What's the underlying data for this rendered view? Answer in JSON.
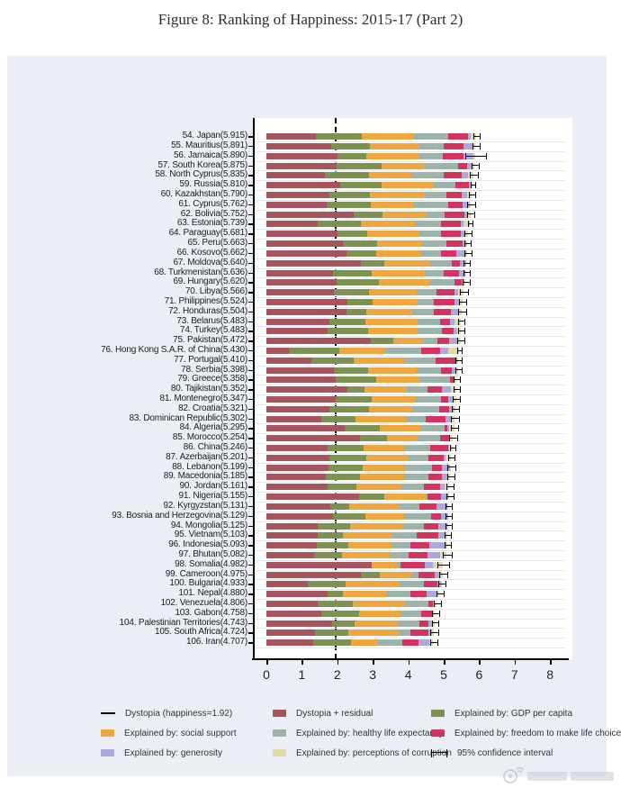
{
  "chart_data": {
    "type": "bar",
    "stacked": true,
    "orientation": "horizontal",
    "title": "Figure 8: Ranking of Happiness: 2015-17 (Part 2)",
    "xlabel": "",
    "ylabel": "",
    "xlim": [
      0,
      8.5
    ],
    "x_ticks": [
      "0",
      "1",
      "2",
      "3",
      "4",
      "5",
      "6",
      "7",
      "8"
    ],
    "grid": "horizontal-light",
    "dystopia_line_value": 1.92,
    "segments": [
      {
        "key": "dystopia_residual",
        "label": "Dystopia + residual",
        "color": "#a6545e"
      },
      {
        "key": "gdp",
        "label": "Explained by: GDP per capita",
        "color": "#7d9153"
      },
      {
        "key": "social",
        "label": "Explained by: social support",
        "color": "#efa63e"
      },
      {
        "key": "health",
        "label": "Explained by: healthy life expectancy",
        "color": "#9cb3a9"
      },
      {
        "key": "freedom",
        "label": "Explained by: freedom to make life choices",
        "color": "#d2335f"
      },
      {
        "key": "generosity",
        "label": "Explained by: generosity",
        "color": "#aca7dc"
      },
      {
        "key": "corruption",
        "label": "Explained by: perceptions of corruption",
        "color": "#e0daa8"
      }
    ],
    "rows": [
      {
        "label": "54. Japan(5.915)",
        "total": 5.915,
        "values": [
          1.389,
          1.294,
          1.462,
          0.988,
          0.553,
          0.079,
          0.15
        ],
        "ci": 0.07
      },
      {
        "label": "55. Mauritius(5.891)",
        "total": 5.891,
        "values": [
          1.838,
          1.09,
          1.387,
          0.684,
          0.558,
          0.245,
          0.089
        ],
        "ci": 0.09
      },
      {
        "label": "56. Jamaica(5.890)",
        "total": 5.89,
        "values": [
          2.004,
          0.819,
          1.493,
          0.654,
          0.58,
          0.299,
          0.041
        ],
        "ci": 0.28
      },
      {
        "label": "57. South Korea(5.875)",
        "total": 5.875,
        "values": [
          1.98,
          1.266,
          1.204,
          0.955,
          0.244,
          0.175,
          0.051
        ],
        "ci": 0.08
      },
      {
        "label": "58. North Cyprus(5.835)",
        "total": 5.835,
        "values": [
          1.658,
          1.229,
          1.211,
          0.909,
          0.495,
          0.179,
          0.154
        ],
        "ci": 0.1
      },
      {
        "label": "59. Russia(5.810)",
        "total": 5.81,
        "values": [
          2.092,
          1.151,
          1.479,
          0.599,
          0.399,
          0.065,
          0.025
        ],
        "ci": 0.06
      },
      {
        "label": "60. Kazakhstan(5.790)",
        "total": 5.79,
        "values": [
          1.777,
          1.143,
          1.516,
          0.631,
          0.454,
          0.148,
          0.121
        ],
        "ci": 0.07
      },
      {
        "label": "61. Cyprus(5.762)",
        "total": 5.762,
        "values": [
          1.706,
          1.229,
          1.191,
          0.999,
          0.406,
          0.19,
          0.041
        ],
        "ci": 0.09
      },
      {
        "label": "62. Bolivia(5.752)",
        "total": 5.752,
        "values": [
          2.46,
          0.807,
          1.254,
          0.509,
          0.559,
          0.1,
          0.063
        ],
        "ci": 0.08
      },
      {
        "label": "63. Estonia(5.739)",
        "total": 5.739,
        "values": [
          1.457,
          1.2,
          1.532,
          0.737,
          0.553,
          0.086,
          0.174
        ],
        "ci": 0.06
      },
      {
        "label": "64. Paraguay(5.681)",
        "total": 5.681,
        "values": [
          2.013,
          0.833,
          1.473,
          0.617,
          0.555,
          0.112,
          0.078
        ],
        "ci": 0.09
      },
      {
        "label": "65. Peru(5.663)",
        "total": 5.663,
        "values": [
          2.161,
          0.963,
          1.274,
          0.675,
          0.462,
          0.092,
          0.036
        ],
        "ci": 0.08
      },
      {
        "label": "66. Kosovo(5.662)",
        "total": 5.662,
        "values": [
          2.254,
          0.855,
          1.23,
          0.578,
          0.448,
          0.274,
          0.023
        ],
        "ci": 0.09
      },
      {
        "label": "67. Moldova(5.640)",
        "total": 5.64,
        "values": [
          2.659,
          0.657,
          1.301,
          0.62,
          0.232,
          0.171,
          0.0
        ],
        "ci": 0.08
      },
      {
        "label": "68. Turkmenistan(5.636)",
        "total": 5.636,
        "values": [
          1.871,
          1.092,
          1.512,
          0.514,
          0.441,
          0.178,
          0.028
        ],
        "ci": 0.08
      },
      {
        "label": "69. Hungary(5.620)",
        "total": 5.62,
        "values": [
          1.992,
          1.171,
          1.419,
          0.732,
          0.199,
          0.081,
          0.026
        ],
        "ci": 0.08
      },
      {
        "label": "70. Libya(5.566)",
        "total": 5.566,
        "values": [
          1.914,
          0.985,
          1.35,
          0.553,
          0.496,
          0.116,
          0.152
        ],
        "ci": 0.1
      },
      {
        "label": "71. Philippines(5.524)",
        "total": 5.524,
        "values": [
          2.276,
          0.712,
          1.258,
          0.464,
          0.593,
          0.117,
          0.104
        ],
        "ci": 0.09
      },
      {
        "label": "72. Honduras(5.504)",
        "total": 5.504,
        "values": [
          2.262,
          0.554,
          1.291,
          0.604,
          0.482,
          0.24,
          0.071
        ],
        "ci": 0.1
      },
      {
        "label": "73. Belarus(5.483)",
        "total": 5.483,
        "values": [
          1.765,
          1.039,
          1.461,
          0.635,
          0.281,
          0.134,
          0.168
        ],
        "ci": 0.07
      },
      {
        "label": "74. Turkey(5.483)",
        "total": 5.483,
        "values": [
          1.73,
          1.148,
          1.38,
          0.686,
          0.324,
          0.106,
          0.109
        ],
        "ci": 0.08
      },
      {
        "label": "75. Pakistan(5.472)",
        "total": 5.472,
        "values": [
          2.938,
          0.652,
          0.81,
          0.424,
          0.334,
          0.216,
          0.098
        ],
        "ci": 0.09
      },
      {
        "label": "76. Hong Kong S.A.R. of China(5.430)",
        "total": 5.43,
        "values": [
          0.644,
          1.405,
          1.29,
          1.03,
          0.524,
          0.246,
          0.291
        ],
        "ci": 0.06
      },
      {
        "label": "77. Portugal(5.410)",
        "total": 5.41,
        "values": [
          1.274,
          1.189,
          1.429,
          0.884,
          0.562,
          0.055,
          0.017
        ],
        "ci": 0.08
      },
      {
        "label": "78. Serbia(5.398)",
        "total": 5.398,
        "values": [
          1.904,
          0.975,
          1.369,
          0.685,
          0.288,
          0.134,
          0.043
        ],
        "ci": 0.08
      },
      {
        "label": "79. Greece(5.358)",
        "total": 5.358,
        "values": [
          1.948,
          1.154,
          1.202,
          0.879,
          0.131,
          0.0,
          0.044
        ],
        "ci": 0.08
      },
      {
        "label": "80. Tajikistan(5.352)",
        "total": 5.352,
        "values": [
          2.292,
          0.474,
          1.179,
          0.598,
          0.412,
          0.251,
          0.146
        ],
        "ci": 0.07
      },
      {
        "label": "81. Montenegro(5.347)",
        "total": 5.347,
        "values": [
          1.955,
          1.024,
          1.201,
          0.736,
          0.218,
          0.134,
          0.079
        ],
        "ci": 0.09
      },
      {
        "label": "82. Croatia(5.321)",
        "total": 5.321,
        "values": [
          1.783,
          1.106,
          1.223,
          0.768,
          0.263,
          0.139,
          0.039
        ],
        "ci": 0.09
      },
      {
        "label": "83. Dominican Republic(5.302)",
        "total": 5.302,
        "values": [
          1.537,
          0.982,
          1.41,
          0.573,
          0.554,
          0.143,
          0.103
        ],
        "ci": 0.1
      },
      {
        "label": "84. Algeria(5.295)",
        "total": 5.295,
        "values": [
          2.208,
          0.979,
          1.154,
          0.687,
          0.077,
          0.055,
          0.135
        ],
        "ci": 0.09
      },
      {
        "label": "85. Morocco(5.254)",
        "total": 5.254,
        "values": [
          2.648,
          0.758,
          0.822,
          0.668,
          0.253,
          0.032,
          0.073
        ],
        "ci": 0.09
      },
      {
        "label": "86. China(5.246)",
        "total": 5.246,
        "values": [
          1.723,
          1.029,
          1.125,
          0.741,
          0.506,
          0.022,
          0.1
        ],
        "ci": 0.06
      },
      {
        "label": "87. Azerbaijan(5.201)",
        "total": 5.201,
        "values": [
          1.788,
          1.024,
          1.161,
          0.603,
          0.43,
          0.035,
          0.16
        ],
        "ci": 0.07
      },
      {
        "label": "88. Lebanon(5.199)",
        "total": 5.199,
        "values": [
          1.747,
          0.965,
          1.174,
          0.785,
          0.288,
          0.215,
          0.025
        ],
        "ci": 0.1
      },
      {
        "label": "89. Macedonia(5.185)",
        "total": 5.185,
        "values": [
          1.677,
          0.959,
          1.239,
          0.691,
          0.394,
          0.173,
          0.052
        ],
        "ci": 0.09
      },
      {
        "label": "90. Jordan(5.161)",
        "total": 5.161,
        "values": [
          1.722,
          0.822,
          1.265,
          0.645,
          0.448,
          0.13,
          0.129
        ],
        "ci": 0.09
      },
      {
        "label": "91. Nigeria(5.155)",
        "total": 5.155,
        "values": [
          2.625,
          0.689,
          1.172,
          0.048,
          0.382,
          0.201,
          0.038
        ],
        "ci": 0.09
      },
      {
        "label": "92. Kyrgyzstan(5.131)",
        "total": 5.131,
        "values": [
          1.801,
          0.53,
          1.4,
          0.591,
          0.469,
          0.307,
          0.033
        ],
        "ci": 0.07
      },
      {
        "label": "93. Bosnia and Herzegovina(5.129)",
        "total": 5.129,
        "values": [
          1.882,
          0.915,
          1.078,
          0.758,
          0.28,
          0.216,
          0.0
        ],
        "ci": 0.08
      },
      {
        "label": "94. Mongolia(5.125)",
        "total": 5.125,
        "values": [
          1.439,
          0.914,
          1.517,
          0.575,
          0.395,
          0.253,
          0.032
        ],
        "ci": 0.07
      },
      {
        "label": "95. Vietnam(5.103)",
        "total": 5.103,
        "values": [
          1.447,
          0.715,
          1.365,
          0.702,
          0.618,
          0.177,
          0.079
        ],
        "ci": 0.07
      },
      {
        "label": "96. Indonesia(5.093)",
        "total": 5.093,
        "values": [
          1.417,
          0.899,
          1.215,
          0.522,
          0.538,
          0.484,
          0.018
        ],
        "ci": 0.08
      },
      {
        "label": "97. Bhutan(5.082)",
        "total": 5.082,
        "values": [
          1.348,
          0.796,
          1.335,
          0.527,
          0.541,
          0.364,
          0.171
        ],
        "ci": 0.12
      },
      {
        "label": "98. Somalia(4.982)",
        "total": 4.982,
        "values": [
          2.961,
          0.0,
          0.712,
          0.115,
          0.674,
          0.238,
          0.282
        ],
        "ci": 0.15
      },
      {
        "label": "99. Cameroon(4.975)",
        "total": 4.975,
        "values": [
          2.658,
          0.549,
          0.91,
          0.169,
          0.455,
          0.192,
          0.042
        ],
        "ci": 0.1
      },
      {
        "label": "100. Bulgaria(4.933)",
        "total": 4.933,
        "values": [
          1.171,
          1.054,
          1.515,
          0.712,
          0.359,
          0.118,
          0.004
        ],
        "ci": 0.08
      },
      {
        "label": "101. Nepal(4.880)",
        "total": 4.88,
        "values": [
          1.718,
          0.446,
          1.226,
          0.677,
          0.439,
          0.285,
          0.089
        ],
        "ci": 0.09
      },
      {
        "label": "102. Venezuela(4.806)",
        "total": 4.806,
        "values": [
          1.443,
          0.996,
          1.469,
          0.657,
          0.133,
          0.056,
          0.052
        ],
        "ci": 0.09
      },
      {
        "label": "103. Gabon(4.758)",
        "total": 4.758,
        "values": [
          1.554,
          1.057,
          1.183,
          0.571,
          0.295,
          0.043,
          0.055
        ],
        "ci": 0.08
      },
      {
        "label": "104. Palestinian Territories(4.743)",
        "total": 4.743,
        "values": [
          1.854,
          0.642,
          1.217,
          0.602,
          0.266,
          0.086,
          0.076
        ],
        "ci": 0.08
      },
      {
        "label": "105. South Africa(4.724)",
        "total": 4.724,
        "values": [
          1.369,
          0.94,
          1.41,
          0.33,
          0.516,
          0.103,
          0.056
        ],
        "ci": 0.1
      },
      {
        "label": "106. Iran(4.707)",
        "total": 4.707,
        "values": [
          1.32,
          1.059,
          0.771,
          0.691,
          0.459,
          0.282,
          0.125
        ],
        "ci": 0.08
      }
    ]
  },
  "legend": {
    "items": [
      {
        "label": "Dystopia (happiness=1.92)",
        "swatch": "line"
      },
      {
        "label": "Dystopia + residual",
        "swatch": "#a6545e"
      },
      {
        "label": "Explained by: GDP per capita",
        "swatch": "#7d9153"
      },
      {
        "label": "Explained by: social support",
        "swatch": "#efa63e"
      },
      {
        "label": "Explained by: healthy life expectancy",
        "swatch": "#9cb3a9"
      },
      {
        "label": "Explained by: freedom to make life choices",
        "swatch": "#d2335f"
      },
      {
        "label": "Explained by: generosity",
        "swatch": "#aca7dc"
      },
      {
        "label": "Explained by: perceptions of corruption",
        "swatch": "#e0daa8"
      },
      {
        "label": "95% confidence interval",
        "swatch": "ci"
      }
    ]
  },
  "colors": {
    "figure_background": "#ebeff5",
    "plot_background": "#ffffff",
    "gridline": "#e3e9f2",
    "axis": "#000000"
  }
}
